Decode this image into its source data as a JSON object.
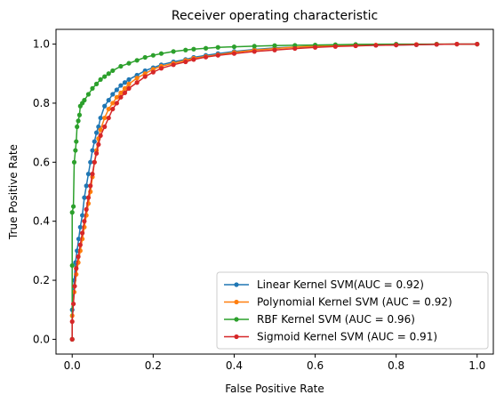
{
  "chart_data": {
    "type": "line",
    "title": "Receiver operating characteristic",
    "xlabel": "False Positive Rate",
    "ylabel": "True Positive Rate",
    "xlim": [
      -0.04,
      1.04
    ],
    "ylim": [
      -0.05,
      1.05
    ],
    "xticks": [
      0.0,
      0.2,
      0.4,
      0.6,
      0.8,
      1.0
    ],
    "yticks": [
      0.0,
      0.2,
      0.4,
      0.6,
      0.8,
      1.0
    ],
    "xtick_labels": [
      "0.0",
      "0.2",
      "0.4",
      "0.6",
      "0.8",
      "1.0"
    ],
    "ytick_labels": [
      "0.0",
      "0.2",
      "0.4",
      "0.6",
      "0.8",
      "1.0"
    ],
    "grid": false,
    "legend_position": "lower-right",
    "markers": "dot",
    "series": [
      {
        "name": "Linear Kernel SVM(AUC = 0.92)",
        "color": "#1f77b4",
        "x": [
          0.0,
          0.0,
          0.005,
          0.008,
          0.012,
          0.016,
          0.02,
          0.025,
          0.03,
          0.035,
          0.04,
          0.045,
          0.05,
          0.055,
          0.06,
          0.065,
          0.07,
          0.08,
          0.09,
          0.1,
          0.11,
          0.12,
          0.13,
          0.14,
          0.16,
          0.18,
          0.2,
          0.22,
          0.25,
          0.28,
          0.3,
          0.33,
          0.36,
          0.4,
          0.45,
          0.5,
          0.55,
          0.6,
          0.65,
          0.7,
          0.75,
          0.8,
          0.85,
          0.9,
          0.95,
          1.0
        ],
        "y": [
          0.0,
          0.1,
          0.2,
          0.26,
          0.3,
          0.34,
          0.38,
          0.42,
          0.48,
          0.52,
          0.56,
          0.6,
          0.64,
          0.67,
          0.7,
          0.72,
          0.75,
          0.79,
          0.81,
          0.83,
          0.845,
          0.86,
          0.87,
          0.88,
          0.895,
          0.91,
          0.92,
          0.93,
          0.94,
          0.948,
          0.955,
          0.962,
          0.968,
          0.975,
          0.982,
          0.987,
          0.99,
          0.992,
          0.994,
          0.995,
          0.996,
          0.997,
          0.998,
          0.999,
          1.0,
          1.0
        ]
      },
      {
        "name": "Polynomial Kernel SVM (AUC = 0.92)",
        "color": "#ff7f0e",
        "x": [
          0.0,
          0.0,
          0.005,
          0.01,
          0.015,
          0.02,
          0.025,
          0.03,
          0.035,
          0.04,
          0.045,
          0.05,
          0.055,
          0.06,
          0.065,
          0.07,
          0.08,
          0.09,
          0.1,
          0.11,
          0.12,
          0.13,
          0.14,
          0.16,
          0.18,
          0.2,
          0.22,
          0.25,
          0.28,
          0.3,
          0.33,
          0.36,
          0.4,
          0.45,
          0.5,
          0.55,
          0.6,
          0.65,
          0.7,
          0.75,
          0.8,
          0.85,
          0.9,
          0.95,
          1.0
        ],
        "y": [
          0.0,
          0.08,
          0.16,
          0.22,
          0.26,
          0.3,
          0.34,
          0.38,
          0.42,
          0.46,
          0.5,
          0.55,
          0.6,
          0.64,
          0.68,
          0.71,
          0.75,
          0.78,
          0.8,
          0.82,
          0.835,
          0.85,
          0.865,
          0.885,
          0.9,
          0.915,
          0.925,
          0.935,
          0.945,
          0.952,
          0.958,
          0.964,
          0.972,
          0.98,
          0.985,
          0.99,
          0.993,
          0.995,
          0.996,
          0.997,
          0.998,
          0.999,
          1.0,
          1.0,
          1.0
        ]
      },
      {
        "name": "RBF Kernel SVM (AUC = 0.96)",
        "color": "#2ca02c",
        "x": [
          0.0,
          0.0,
          0.0,
          0.003,
          0.005,
          0.008,
          0.01,
          0.012,
          0.015,
          0.018,
          0.02,
          0.025,
          0.03,
          0.04,
          0.05,
          0.06,
          0.07,
          0.08,
          0.09,
          0.1,
          0.12,
          0.14,
          0.16,
          0.18,
          0.2,
          0.22,
          0.25,
          0.28,
          0.3,
          0.33,
          0.36,
          0.4,
          0.45,
          0.5,
          0.55,
          0.6,
          0.65,
          0.7,
          0.8,
          0.9,
          1.0
        ],
        "y": [
          0.0,
          0.25,
          0.43,
          0.45,
          0.6,
          0.64,
          0.67,
          0.72,
          0.74,
          0.76,
          0.79,
          0.8,
          0.81,
          0.83,
          0.85,
          0.865,
          0.88,
          0.89,
          0.9,
          0.91,
          0.925,
          0.935,
          0.945,
          0.955,
          0.962,
          0.968,
          0.975,
          0.98,
          0.983,
          0.986,
          0.989,
          0.991,
          0.993,
          0.995,
          0.996,
          0.997,
          0.998,
          0.999,
          1.0,
          1.0,
          1.0
        ]
      },
      {
        "name": "Sigmoid Kernel SVM (AUC = 0.91)",
        "color": "#d62728",
        "x": [
          0.0,
          0.0,
          0.003,
          0.006,
          0.01,
          0.015,
          0.02,
          0.025,
          0.03,
          0.035,
          0.04,
          0.045,
          0.05,
          0.055,
          0.06,
          0.065,
          0.07,
          0.08,
          0.09,
          0.1,
          0.11,
          0.12,
          0.13,
          0.14,
          0.16,
          0.18,
          0.2,
          0.22,
          0.25,
          0.28,
          0.3,
          0.33,
          0.36,
          0.4,
          0.45,
          0.5,
          0.55,
          0.6,
          0.65,
          0.7,
          0.75,
          0.8,
          0.85,
          0.9,
          0.95,
          1.0
        ],
        "y": [
          0.0,
          0.06,
          0.12,
          0.18,
          0.24,
          0.28,
          0.32,
          0.36,
          0.4,
          0.44,
          0.48,
          0.52,
          0.56,
          0.6,
          0.63,
          0.66,
          0.69,
          0.72,
          0.75,
          0.78,
          0.8,
          0.82,
          0.835,
          0.85,
          0.87,
          0.89,
          0.905,
          0.918,
          0.93,
          0.94,
          0.948,
          0.956,
          0.962,
          0.968,
          0.975,
          0.98,
          0.985,
          0.989,
          0.992,
          0.994,
          0.996,
          0.997,
          0.998,
          0.999,
          1.0,
          1.0
        ]
      }
    ]
  }
}
